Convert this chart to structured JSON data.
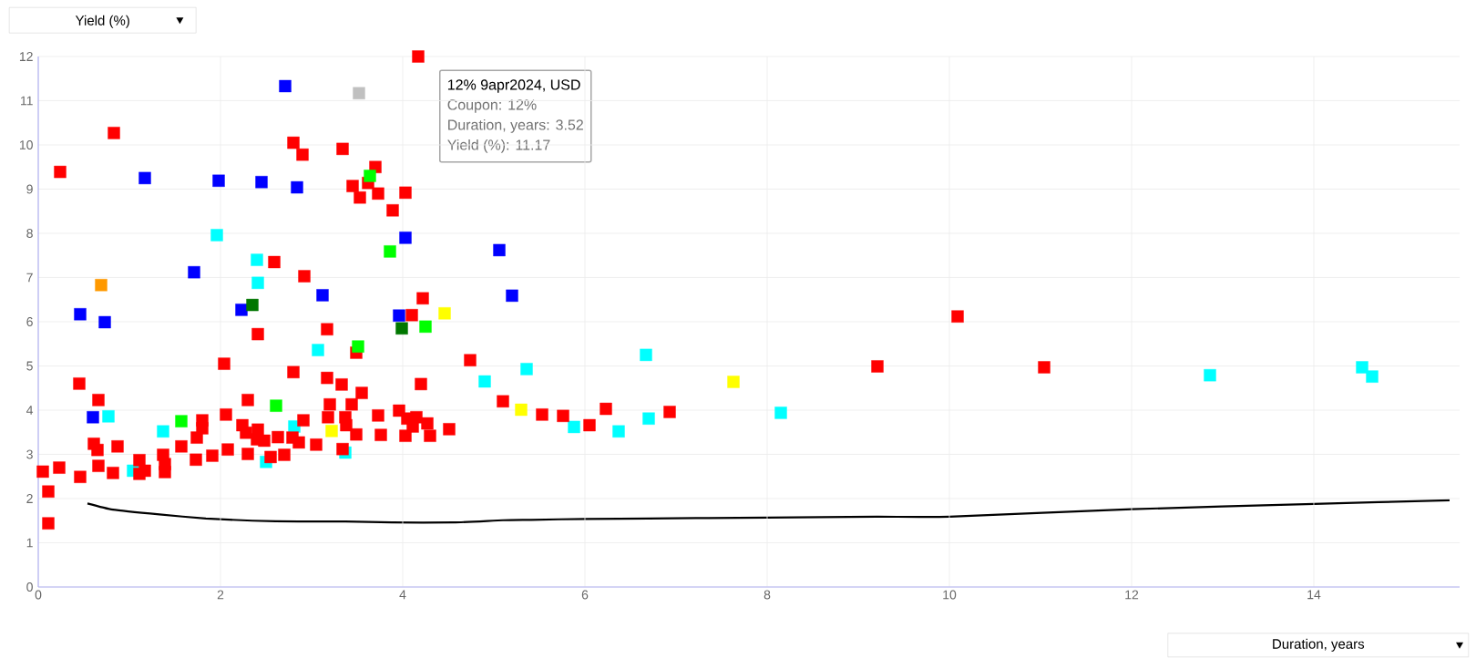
{
  "chart_data": {
    "type": "scatter",
    "xlabel": "Duration, years",
    "ylabel": "Yield (%)",
    "annotations": [
      "12% 9apr2024, USD",
      "Coupon: 12%",
      "Duration, years: 3.52",
      "Yield (%): 11.17"
    ],
    "xlim": [
      0,
      15.6
    ],
    "ylim": [
      0,
      12
    ],
    "xticks": [
      0,
      2,
      4,
      6,
      8,
      10,
      12,
      14
    ],
    "yticks": [
      0,
      1,
      2,
      3,
      4,
      5,
      6,
      7,
      8,
      9,
      10,
      11,
      12
    ],
    "grid": true,
    "marker": "square",
    "series": [
      {
        "color": "#00ffff",
        "x": [
          1.96,
          2.4,
          2.41,
          0.77,
          1.37,
          1.04,
          2.5,
          2.81,
          3.07,
          3.37,
          4.9,
          5.36,
          5.88,
          6.37,
          6.7,
          6.67,
          8.15,
          12.86,
          14.53,
          14.64
        ],
        "values": [
          7.96,
          7.4,
          6.88,
          3.86,
          3.52,
          2.63,
          2.83,
          3.63,
          5.36,
          3.04,
          4.65,
          4.93,
          3.62,
          3.52,
          3.81,
          5.25,
          3.94,
          4.79,
          4.97,
          4.76
        ]
      },
      {
        "color": "#ff0000",
        "x": [
          0.05,
          0.23,
          0.11,
          0.11,
          0.45,
          0.46,
          0.66,
          0.61,
          0.65,
          0.66,
          0.82,
          0.87,
          1.11,
          1.11,
          1.17,
          1.37,
          1.39,
          1.39,
          1.57,
          1.73,
          1.8,
          1.8,
          1.74,
          1.91,
          2.04,
          2.06,
          2.08,
          2.3,
          2.24,
          2.28,
          2.41,
          2.4,
          2.48,
          2.3,
          2.41,
          2.55,
          2.63,
          2.7,
          2.8,
          2.79,
          2.86,
          2.91,
          3.05,
          3.17,
          3.17,
          3.2,
          3.18,
          3.33,
          3.44,
          3.37,
          3.38,
          3.34,
          3.49,
          3.55,
          3.49,
          3.73,
          3.76,
          3.96,
          4.05,
          4.03,
          4.2,
          4.15,
          4.11,
          4.27,
          4.3,
          4.51,
          4.74,
          4.1,
          5.1,
          5.53,
          5.76,
          6.05,
          6.23,
          6.93,
          9.21,
          10.09,
          11.04,
          0.24,
          0.83,
          2.8,
          2.9,
          3.34,
          4.17,
          3.45,
          3.53,
          3.62,
          3.73,
          3.7,
          4.03,
          3.89,
          2.59,
          2.92,
          4.22
        ],
        "values": [
          2.61,
          2.7,
          2.16,
          1.44,
          4.6,
          2.49,
          4.23,
          3.24,
          3.1,
          2.74,
          2.58,
          3.18,
          2.87,
          2.56,
          2.63,
          2.99,
          2.78,
          2.6,
          3.18,
          2.88,
          3.77,
          3.59,
          3.38,
          2.97,
          5.05,
          3.9,
          3.11,
          4.23,
          3.66,
          3.49,
          3.56,
          3.34,
          3.31,
          3.01,
          5.72,
          2.94,
          3.39,
          2.99,
          4.86,
          3.38,
          3.27,
          3.77,
          3.22,
          5.83,
          4.73,
          4.13,
          3.84,
          4.58,
          4.13,
          3.84,
          3.66,
          3.12,
          3.45,
          4.39,
          5.3,
          3.88,
          3.44,
          3.99,
          3.81,
          3.42,
          4.59,
          3.84,
          3.63,
          3.7,
          3.42,
          3.57,
          5.13,
          6.15,
          4.2,
          3.9,
          3.87,
          3.66,
          4.03,
          3.96,
          4.99,
          6.12,
          4.97,
          9.39,
          10.27,
          10.05,
          9.78,
          9.91,
          12.0,
          9.07,
          8.81,
          9.14,
          8.9,
          9.5,
          8.92,
          8.52,
          7.35,
          7.03,
          6.53
        ]
      },
      {
        "color": "#0000ff",
        "x": [
          2.71,
          1.17,
          1.98,
          2.45,
          2.84,
          4.03,
          5.06,
          1.71,
          3.12,
          5.2,
          0.46,
          0.73,
          0.6,
          2.23,
          3.96
        ],
        "values": [
          11.33,
          9.25,
          9.19,
          9.16,
          9.04,
          7.9,
          7.62,
          7.12,
          6.6,
          6.59,
          6.17,
          5.99,
          3.84,
          6.27,
          6.14
        ]
      },
      {
        "color": "#00ff00",
        "x": [
          3.64,
          3.86,
          1.57,
          2.61,
          3.51,
          4.25
        ],
        "values": [
          9.3,
          7.59,
          3.75,
          4.1,
          5.44,
          5.89
        ]
      },
      {
        "color": "#007700",
        "x": [
          2.35,
          3.99
        ],
        "values": [
          6.38,
          5.85
        ]
      },
      {
        "color": "#ffff00",
        "x": [
          4.46,
          5.3,
          3.22,
          7.63
        ],
        "values": [
          6.19,
          4.01,
          3.53,
          4.64
        ]
      },
      {
        "color": "#ff9900",
        "x": [
          0.69
        ],
        "values": [
          6.83
        ]
      },
      {
        "color": "#c0c0c0",
        "x": [
          3.52
        ],
        "values": [
          11.17
        ]
      },
      {
        "type": "line",
        "marker": "none",
        "color": "#000000",
        "x": [
          0.54,
          0.82,
          1.33,
          1.84,
          2.35,
          2.86,
          3.37,
          3.88,
          4.56,
          5.1,
          5.41,
          6.0,
          6.7,
          8.0,
          9.2,
          10.0,
          12.0,
          14.0,
          15.49
        ],
        "values": [
          1.89,
          1.75,
          1.64,
          1.55,
          1.5,
          1.48,
          1.48,
          1.46,
          1.46,
          1.51,
          1.52,
          1.54,
          1.55,
          1.57,
          1.59,
          1.59,
          1.76,
          1.88,
          1.96
        ]
      }
    ]
  }
}
